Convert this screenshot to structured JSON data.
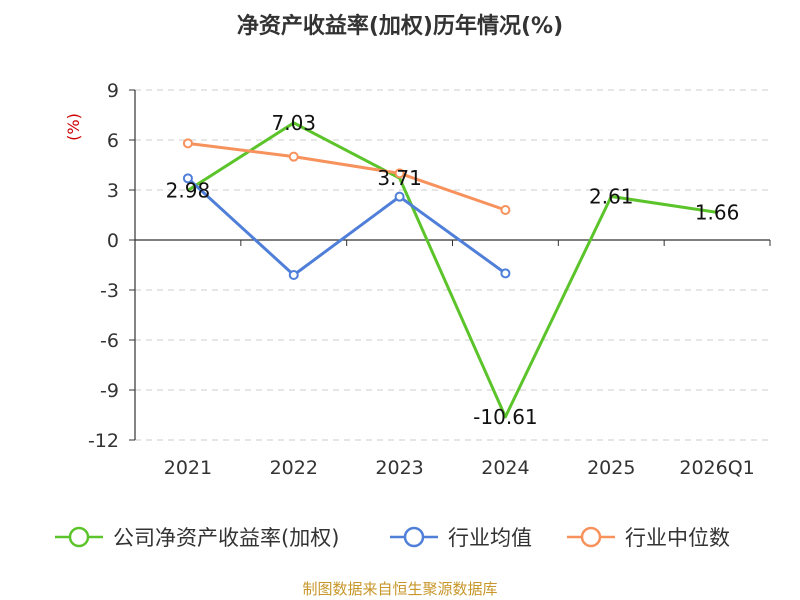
{
  "chart_data": {
    "type": "line",
    "title": "净资产收益率(加权)历年情况(%)",
    "ylabel": "(%)",
    "xlabel": "",
    "categories": [
      "2021",
      "2022",
      "2023",
      "2024",
      "2025",
      "2026Q1"
    ],
    "ylim": [
      -12,
      9
    ],
    "yticks": [
      "9",
      "6",
      "3",
      "0",
      "-3",
      "-6",
      "-9",
      "-12"
    ],
    "yticks_values": [
      9,
      6,
      3,
      0,
      -3,
      -6,
      -9,
      -12
    ],
    "grid": true,
    "series": [
      {
        "name": "公司净资产收益率(加权)",
        "color": "#5cc42b",
        "values": [
          2.98,
          7.03,
          3.71,
          -10.61,
          2.61,
          1.66
        ],
        "labels": [
          "2.98",
          "7.03",
          "3.71",
          "-10.61",
          "2.61",
          "1.66"
        ],
        "show_markers": false
      },
      {
        "name": "行业均值",
        "color": "#4f7fd8",
        "values": [
          3.7,
          -2.1,
          2.6,
          -2.0,
          null,
          null
        ],
        "show_markers": true
      },
      {
        "name": "行业中位数",
        "color": "#f7925c",
        "values": [
          5.8,
          5.0,
          4.0,
          1.8,
          null,
          null
        ],
        "show_markers": true
      }
    ],
    "legend_position": "bottom"
  },
  "source": "制图数据来自恒生聚源数据库"
}
